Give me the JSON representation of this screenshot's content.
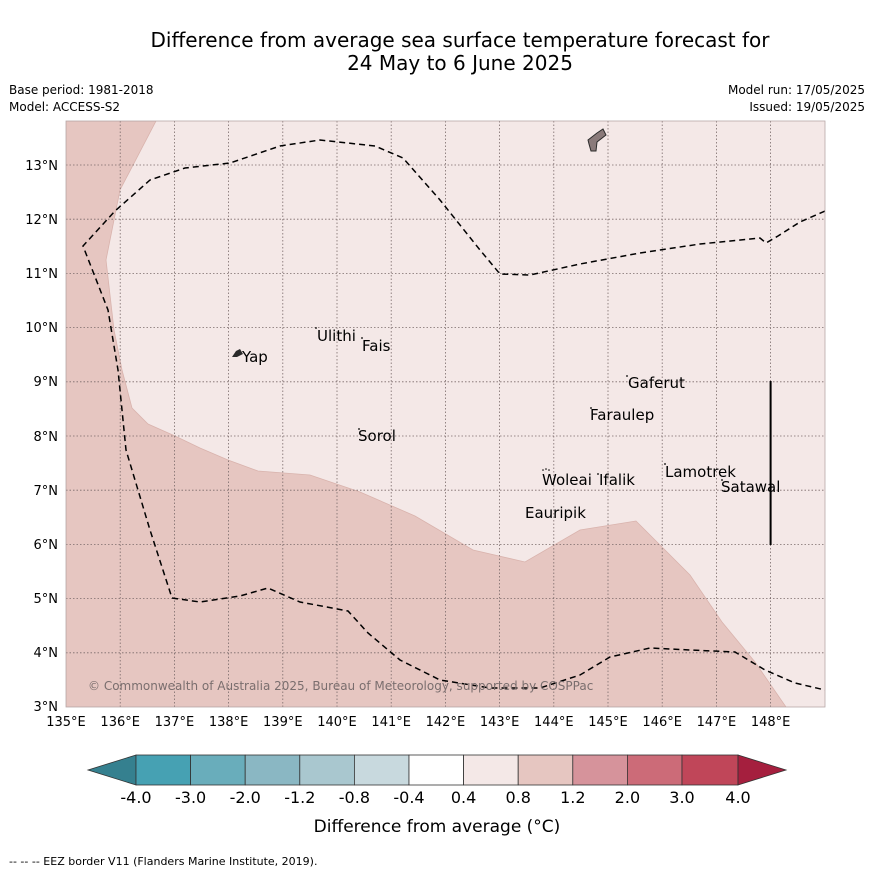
{
  "header": {
    "title_line1": "Difference from average sea surface temperature forecast for",
    "title_line2": "24 May to 6 June 2025",
    "base_period": "Base period: 1981-2018",
    "model": "Model: ACCESS-S2",
    "model_run": "Model run: 17/05/2025",
    "issued": "Issued: 19/05/2025"
  },
  "map": {
    "lat_labels": [
      "3°N",
      "4°N",
      "5°N",
      "6°N",
      "7°N",
      "8°N",
      "9°N",
      "10°N",
      "11°N",
      "12°N",
      "13°N"
    ],
    "lon_labels": [
      "135°E",
      "136°E",
      "137°E",
      "138°E",
      "139°E",
      "140°E",
      "141°E",
      "142°E",
      "143°E",
      "144°E",
      "145°E",
      "146°E",
      "147°E",
      "148°E"
    ],
    "places": [
      {
        "name": "Yap"
      },
      {
        "name": "Ulithi"
      },
      {
        "name": "Fais"
      },
      {
        "name": "Gaferut"
      },
      {
        "name": "Faraulep"
      },
      {
        "name": "Sorol"
      },
      {
        "name": "Woleai"
      },
      {
        "name": "Ifalik"
      },
      {
        "name": "Lamotrek"
      },
      {
        "name": "Satawal"
      },
      {
        "name": "Eauripik"
      }
    ],
    "copyright": "© Commonwealth of Australia 2025, Bureau of Meteorology, supported by COSPPac",
    "fill_colors": {
      "band_0_4_to_0_8": "#f4e8e7",
      "band_0_8_to_1_2": "#e6c6c1",
      "land": "#8a7a7a"
    }
  },
  "colorbar": {
    "ticks": [
      "-4.0",
      "-3.0",
      "-2.0",
      "-1.2",
      "-0.8",
      "-0.4",
      "0.4",
      "0.8",
      "1.2",
      "2.0",
      "3.0",
      "4.0"
    ],
    "colors": [
      "#35808f",
      "#46a1b3",
      "#69adbb",
      "#8ab7c3",
      "#a9c7cf",
      "#c8d9de",
      "#ffffff",
      "#f4e8e7",
      "#e6c6c1",
      "#d6939b",
      "#cc6b78",
      "#c04659",
      "#a51f3e"
    ],
    "title": "Difference from average (°C)"
  },
  "footer": {
    "eez_note": "--  --  -- EEZ border V11 (Flanders Marine Institute, 2019)."
  }
}
